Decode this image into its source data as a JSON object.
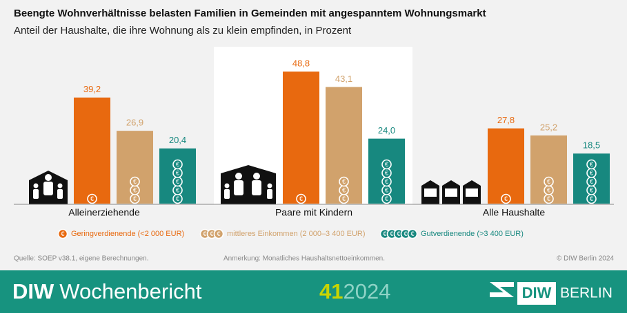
{
  "chart_data": {
    "type": "bar",
    "title": "Beengte Wohnverhältnisse belasten Familien in Gemeinden mit angespanntem Wohnungsmarkt",
    "subtitle": "Anteil der Haushalte, die ihre Wohnung als zu klein empfinden, in Prozent",
    "categories": [
      "Alleinerziehende",
      "Paare mit Kindern",
      "Alle Haushalte"
    ],
    "series": [
      {
        "name": "Geringverdienende (<2 000 EUR)",
        "color": "#e8690f",
        "values": [
          39.2,
          48.8,
          27.8
        ],
        "value_labels": [
          "39,2",
          "48,8",
          "27,8"
        ]
      },
      {
        "name": "mittleres Einkommen (2 000–3 400 EUR)",
        "color": "#d1a26c",
        "values": [
          26.9,
          43.1,
          25.2
        ],
        "value_labels": [
          "26,9",
          "43,1",
          "25,2"
        ]
      },
      {
        "name": "Gutverdienende (>3 400 EUR)",
        "color": "#17887f",
        "values": [
          20.4,
          24.0,
          18.5
        ],
        "value_labels": [
          "20,4",
          "24,0",
          "18,5"
        ]
      }
    ],
    "grid": false
  },
  "notes": {
    "source": "Quelle: SOEP v38.1, eigene Berechnungen.",
    "remark": "Anmerkung: Monatliches Haushaltsnettoeinkommen.",
    "copyright": "© DIW Berlin 2024"
  },
  "footer": {
    "brand": "DIW",
    "publication": "Wochenbericht",
    "issue": "41",
    "year": "2024",
    "logo_left": "DIW",
    "logo_right": "BERLIN"
  }
}
